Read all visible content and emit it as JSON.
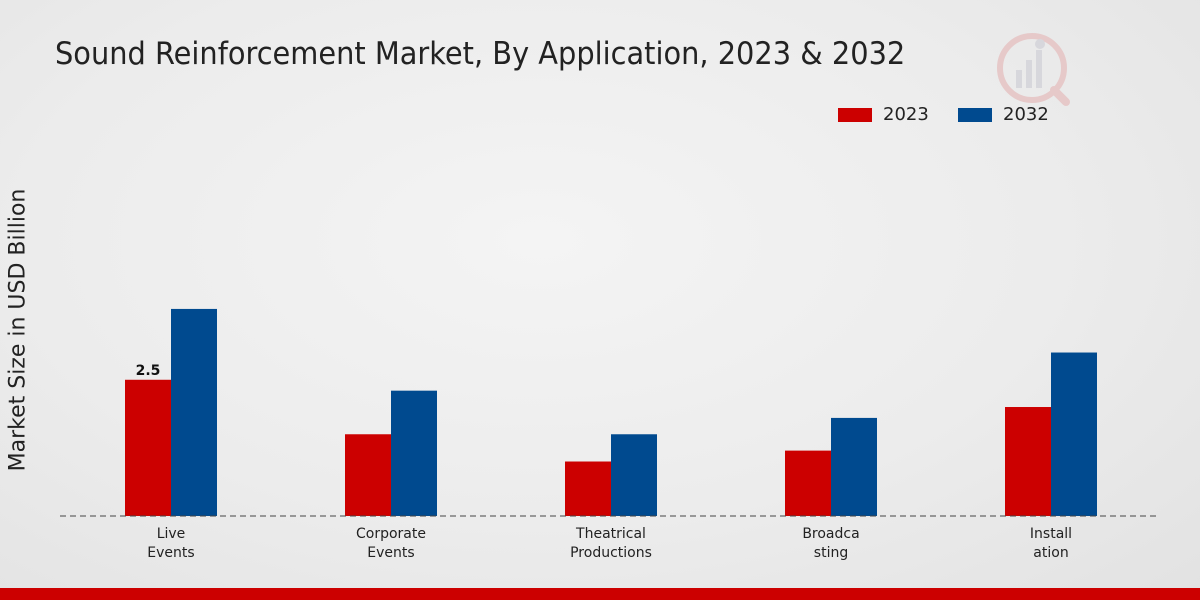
{
  "chart_data": {
    "type": "bar",
    "title": "Sound Reinforcement Market, By Application, 2023 & 2032",
    "xlabel": "",
    "ylabel": "Market Size in USD Billion",
    "categories": [
      [
        "Live",
        "Events"
      ],
      [
        "Corporate",
        "Events"
      ],
      [
        "Theatrical",
        "Productions"
      ],
      [
        "Broadca",
        "sting"
      ],
      [
        "Install",
        "ation"
      ]
    ],
    "series": [
      {
        "name": "2023",
        "color": "#cc0000",
        "values": [
          2.5,
          1.5,
          1.0,
          1.2,
          2.0
        ]
      },
      {
        "name": "2032",
        "color": "#004a8f",
        "values": [
          3.8,
          2.3,
          1.5,
          1.8,
          3.0
        ]
      }
    ],
    "data_labels": [
      {
        "series": 0,
        "index": 0,
        "text": "2.5"
      }
    ],
    "ylim": [
      0,
      6.9
    ],
    "grid": false,
    "legend": "top-right"
  }
}
